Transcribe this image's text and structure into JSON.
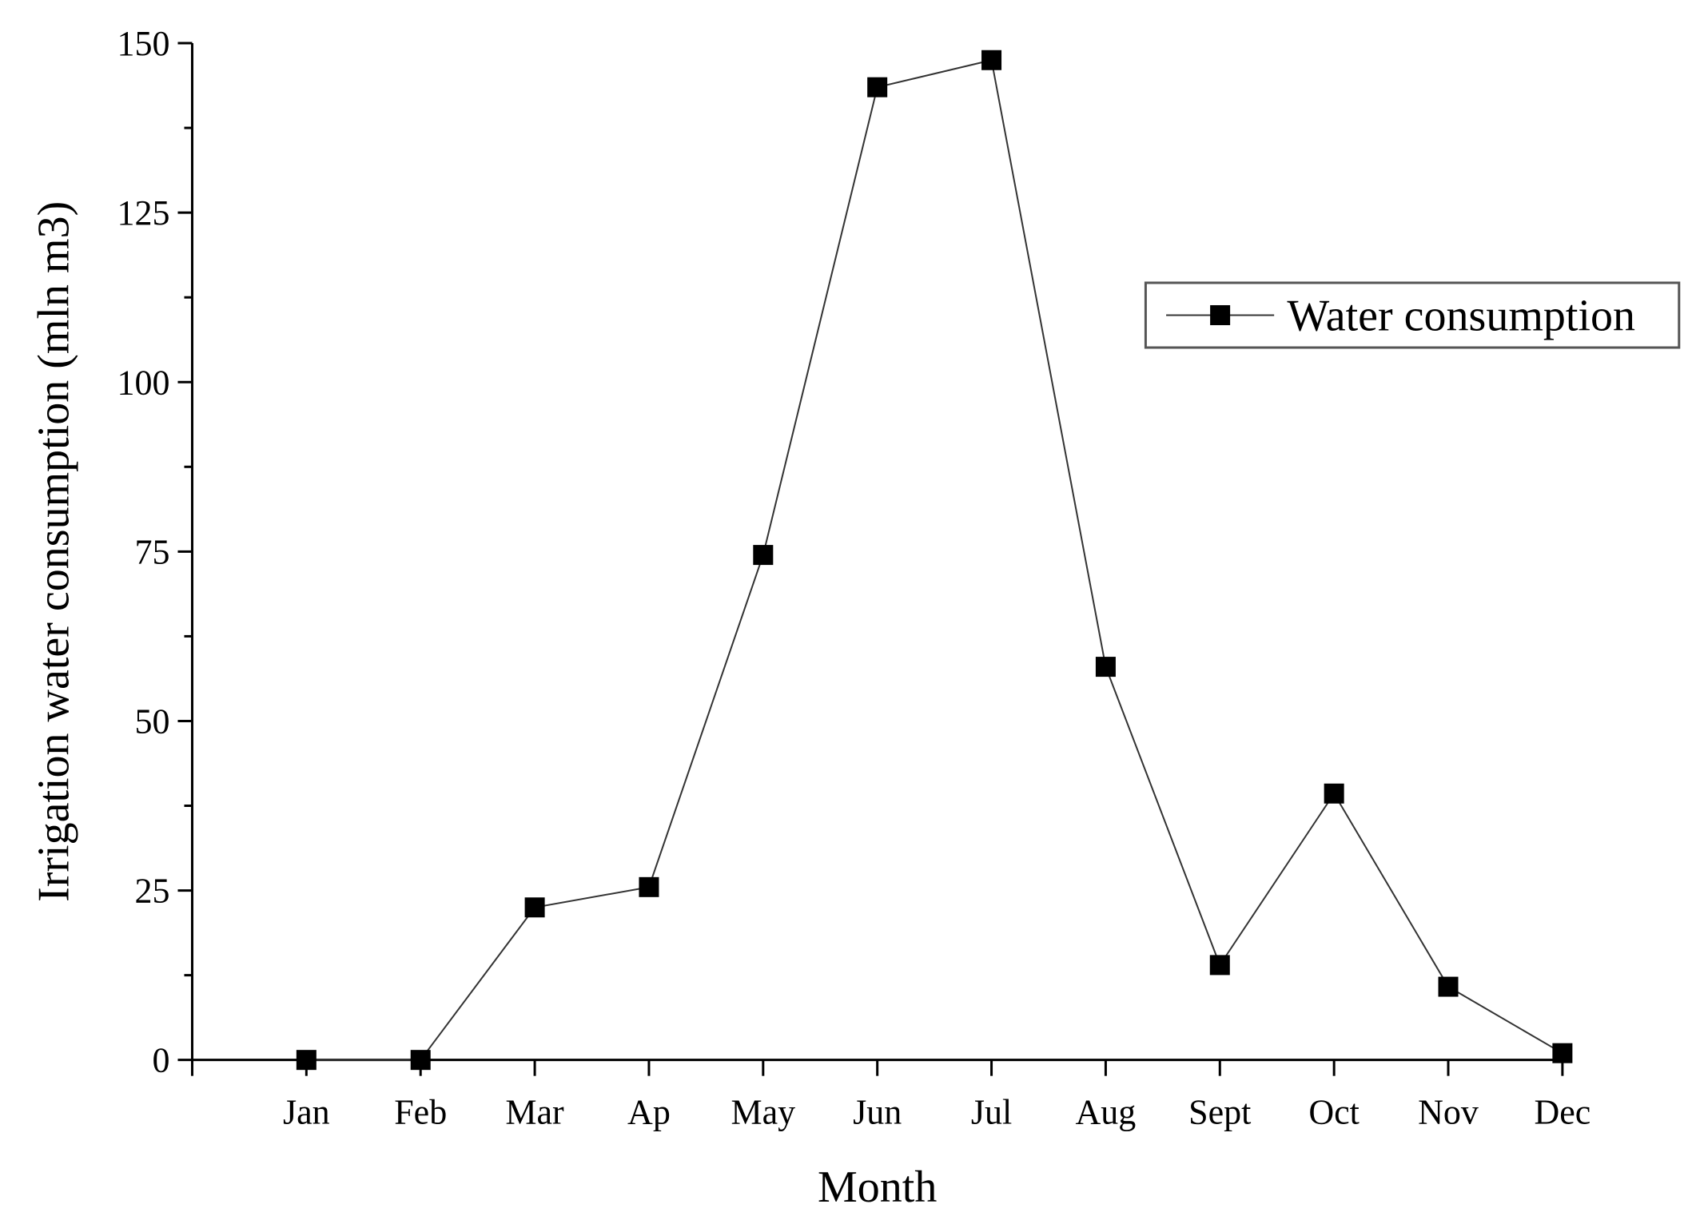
{
  "chart_data": {
    "type": "line",
    "categories": [
      "Jan",
      "Feb",
      "Mar",
      "Ap",
      "May",
      "Jun",
      "Jul",
      "Aug",
      "Sept",
      "Oct",
      "Nov",
      "Dec"
    ],
    "series": [
      {
        "name": "Water consumption",
        "values": [
          0,
          0,
          22.5,
          25.5,
          74.5,
          143.5,
          147.5,
          58,
          14,
          39.3,
          10.8,
          1
        ],
        "color": "#000000",
        "marker": "square"
      }
    ],
    "xlabel": "Month",
    "ylabel": "Irrigation water consumption (mln m3)",
    "ylim": [
      0,
      150
    ],
    "yticks": [
      0,
      25,
      50,
      75,
      100,
      125,
      150
    ],
    "grid": false,
    "legend_position": "top-right"
  }
}
